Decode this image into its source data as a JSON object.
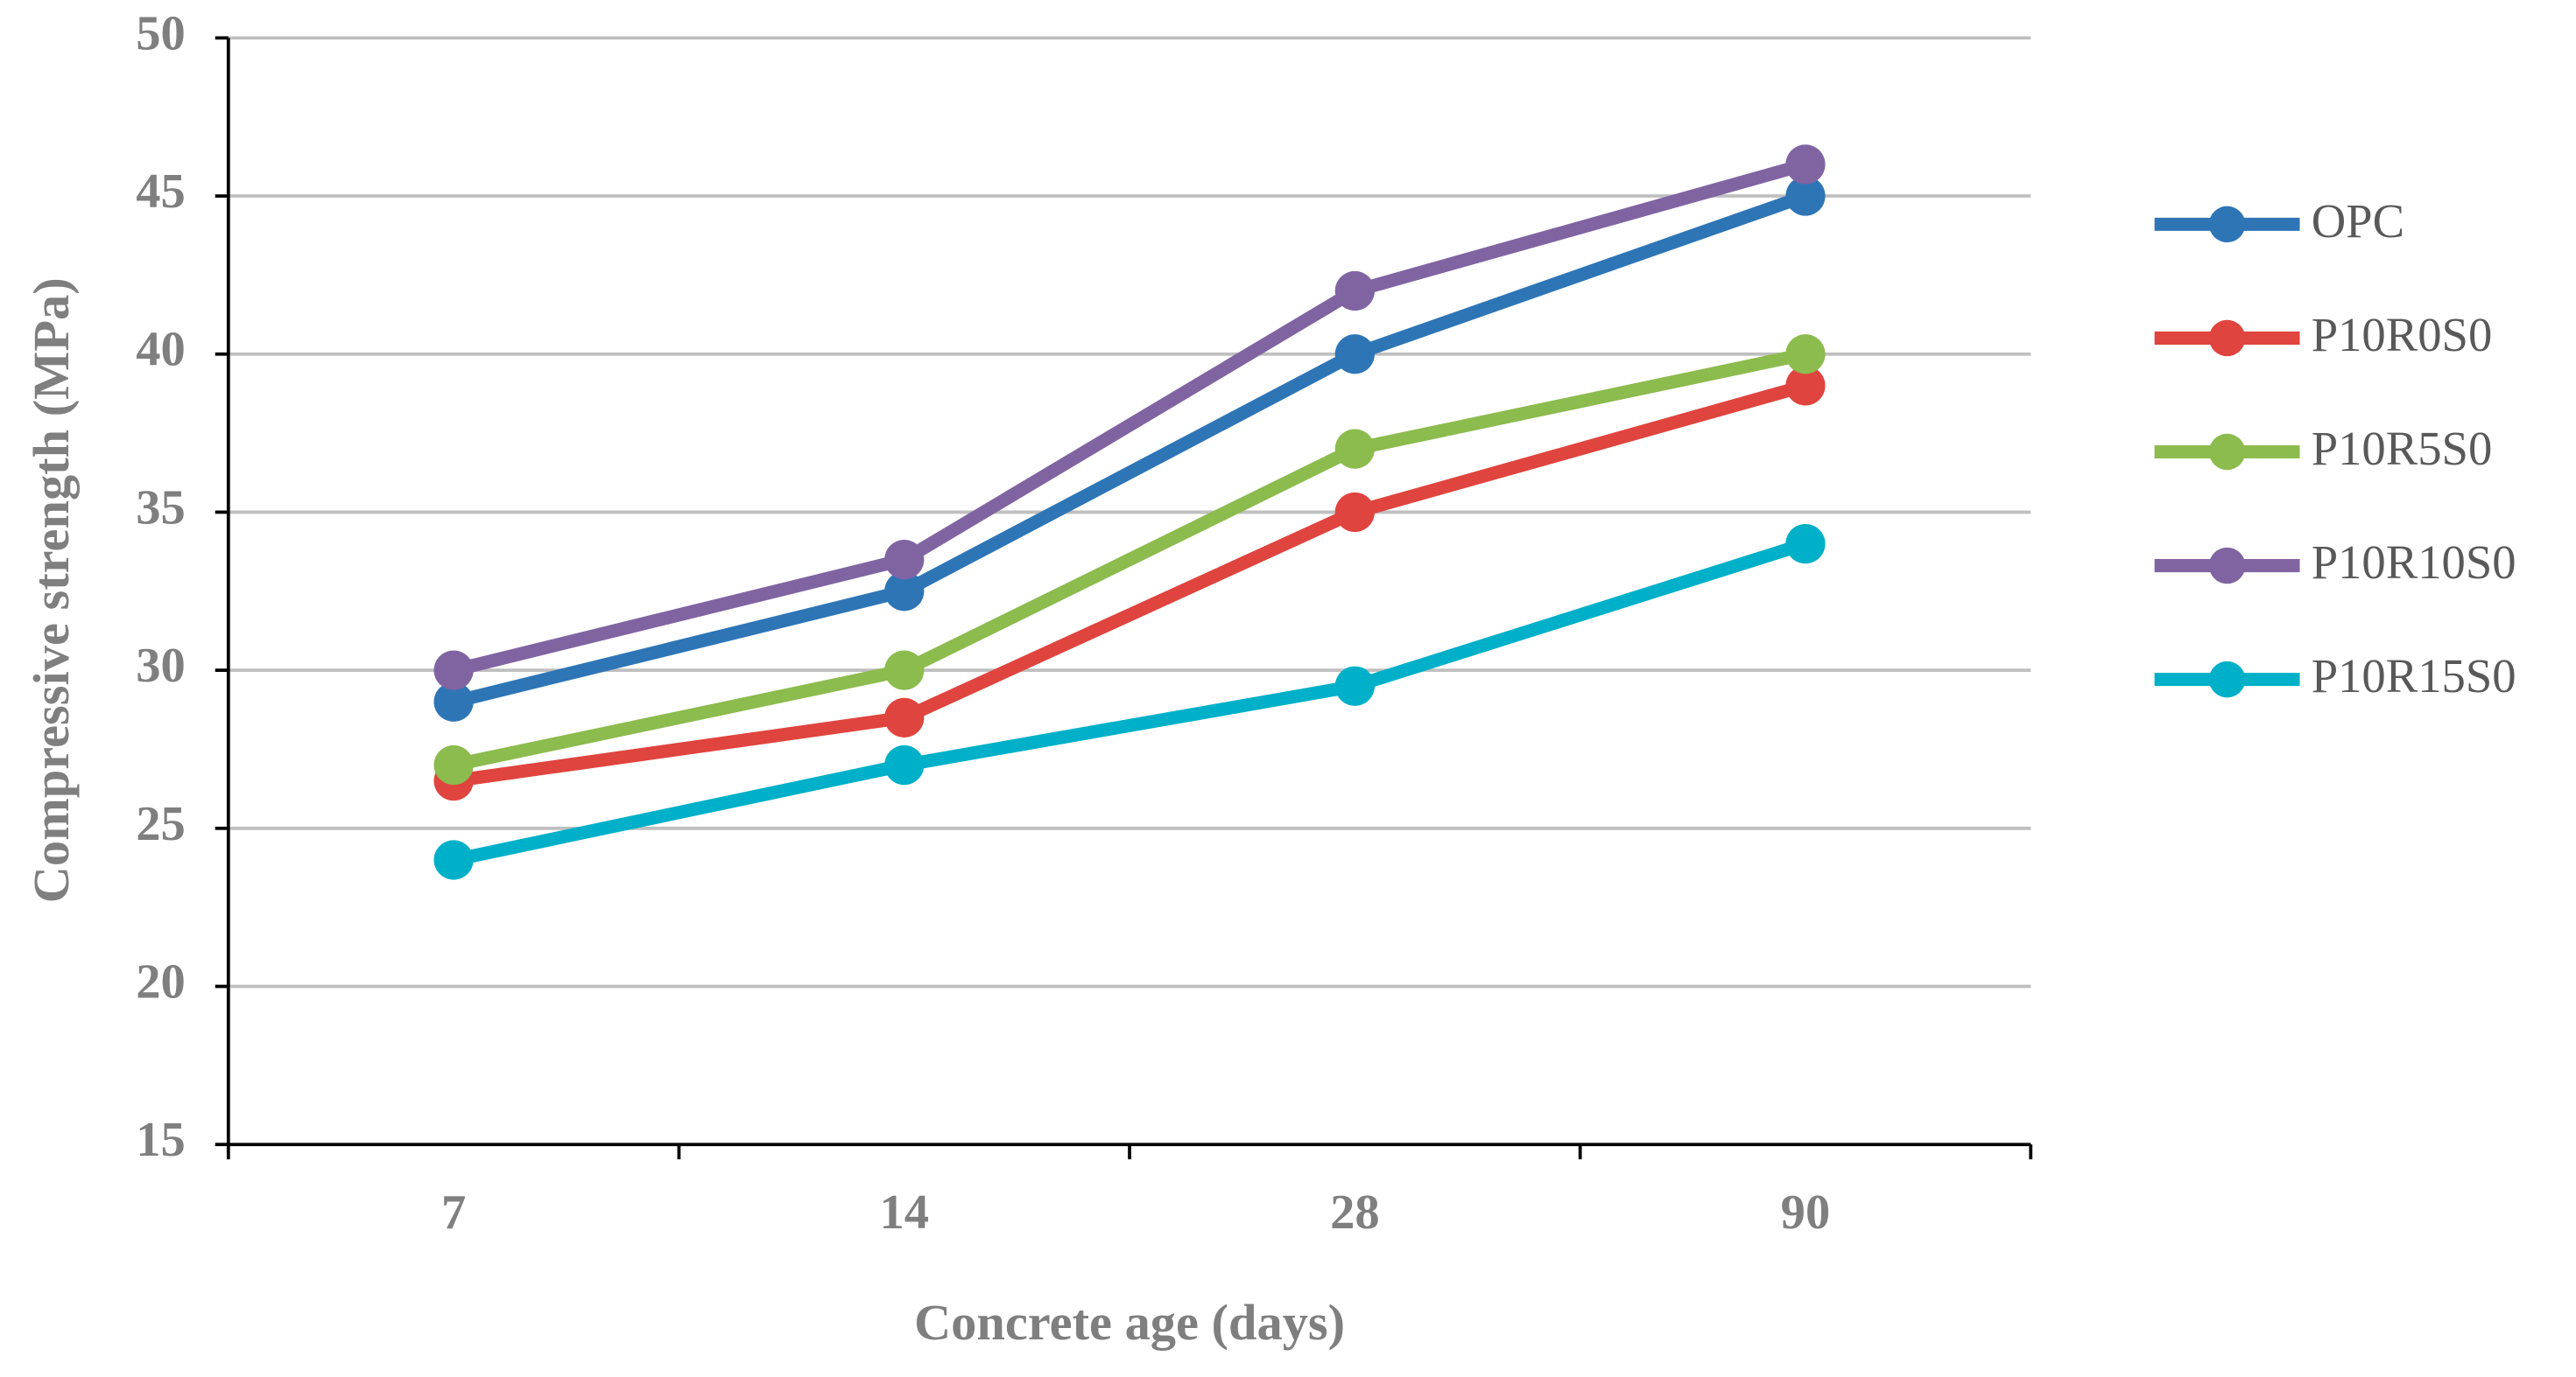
{
  "chart_data": {
    "type": "line",
    "x_label": "Concrete age (days)",
    "y_label": "Compressive strength (MPa)",
    "categories": [
      "7",
      "14",
      "28",
      "90"
    ],
    "series": [
      {
        "name": "OPC",
        "color": "#2e75b6",
        "values": [
          29,
          32.5,
          40,
          45
        ]
      },
      {
        "name": "P10R0S0",
        "color": "#e0443e",
        "values": [
          26.5,
          28.5,
          35,
          39
        ]
      },
      {
        "name": "P10R5S0",
        "color": "#8cbb4e",
        "values": [
          27,
          30,
          37,
          40
        ]
      },
      {
        "name": "P10R10S0",
        "color": "#8064a2",
        "values": [
          30,
          33.5,
          42,
          46
        ]
      },
      {
        "name": "P10R15S0",
        "color": "#00b0c8",
        "values": [
          24,
          27,
          29.5,
          34
        ]
      }
    ],
    "ylim": [
      15,
      50
    ],
    "yticks": [
      15,
      20,
      25,
      30,
      35,
      40,
      45,
      50
    ],
    "grid": true,
    "legend": "right"
  }
}
